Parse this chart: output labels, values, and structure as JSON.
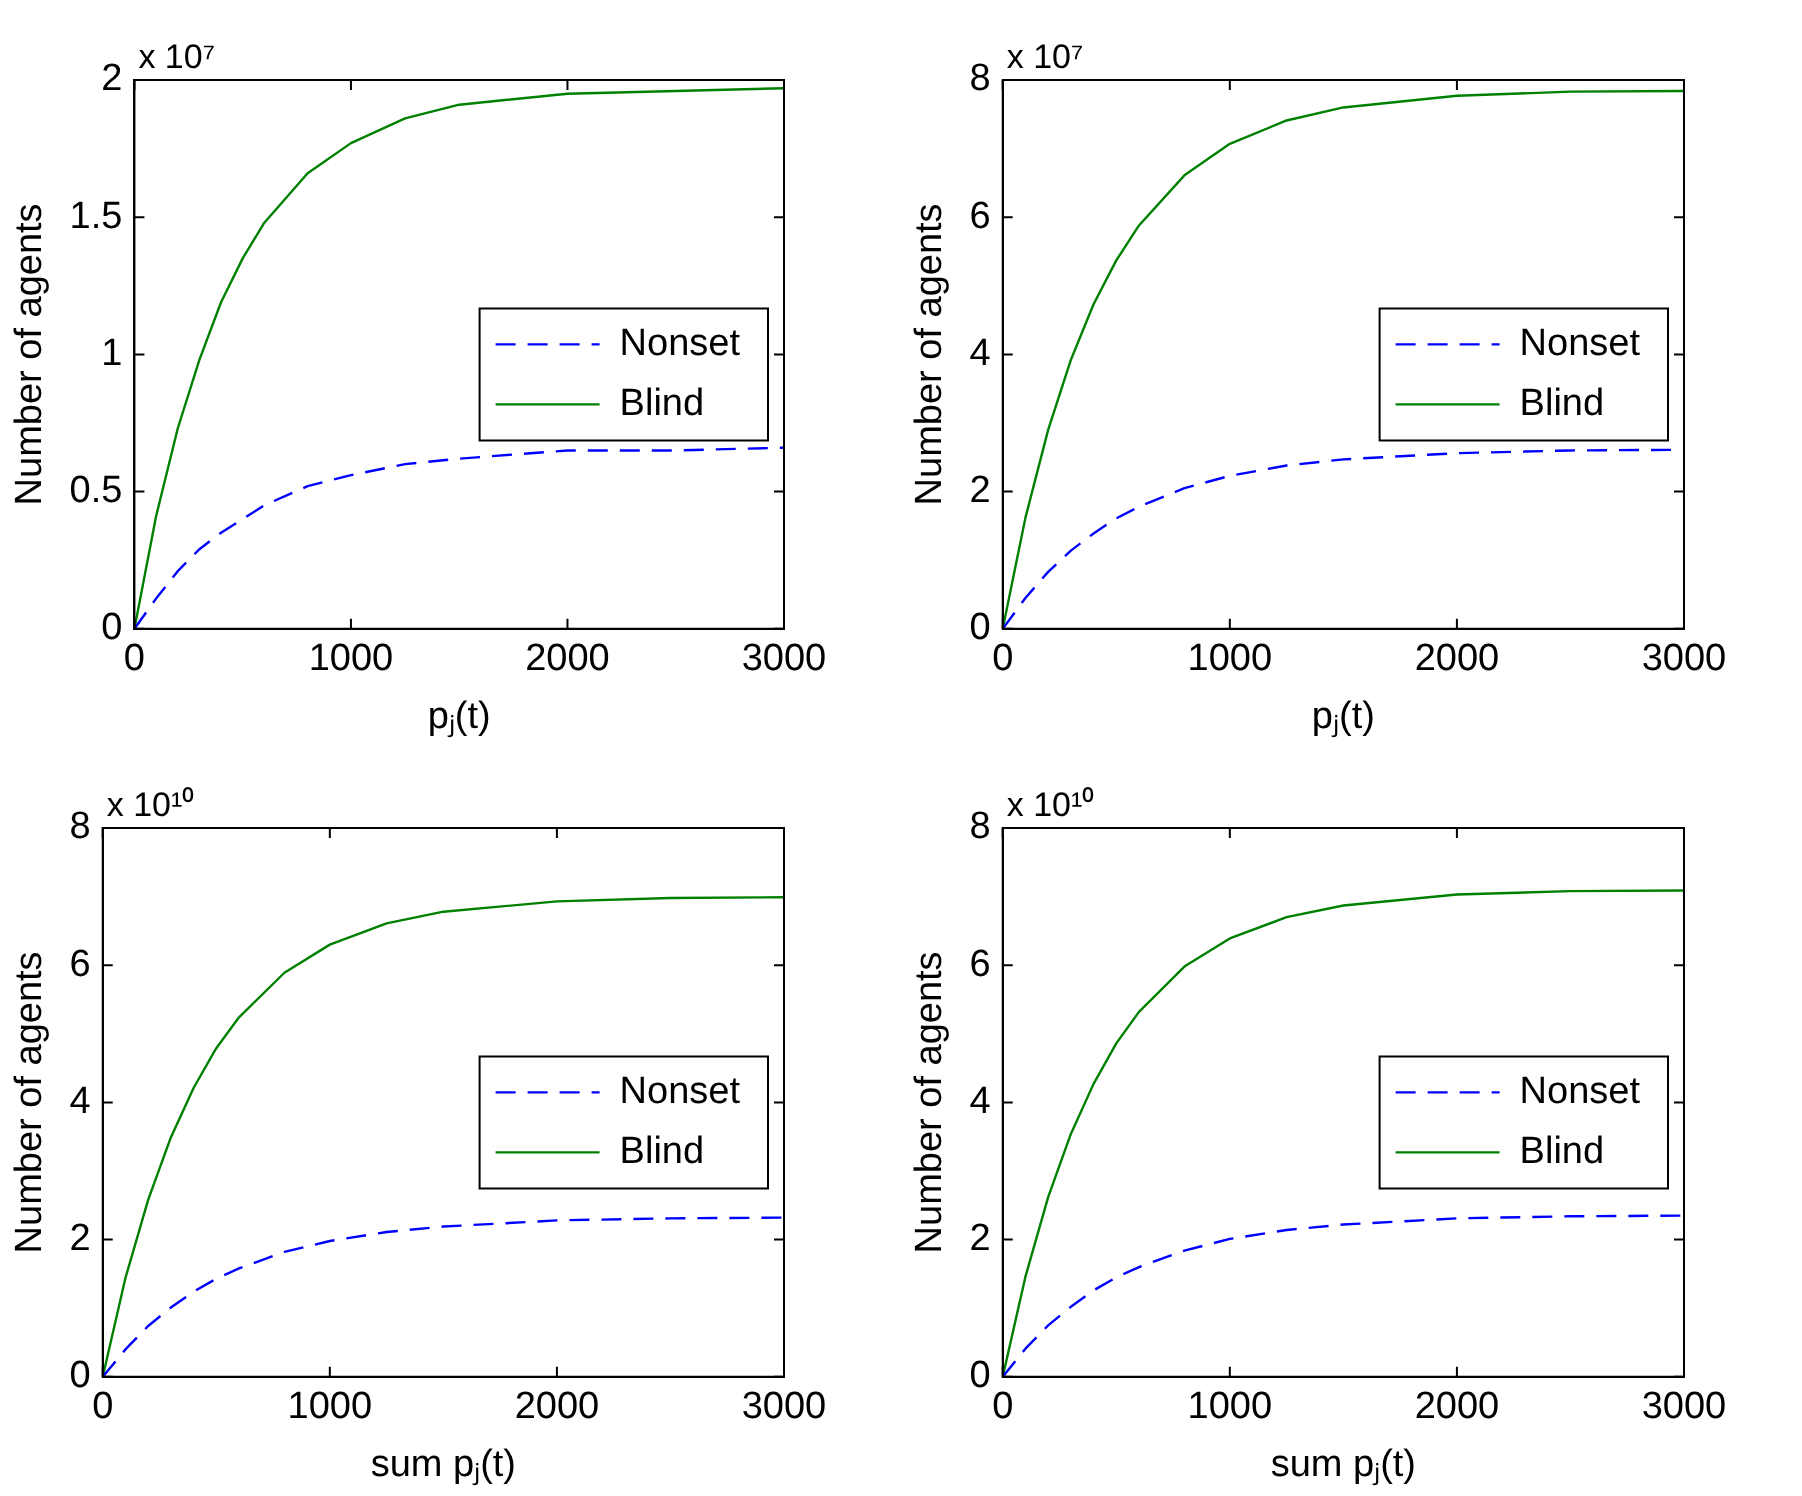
{
  "chart_data": [
    {
      "type": "line",
      "xlabel": "pⱼ(t)",
      "ylabel": "Number of agents",
      "annotations": [
        "x 10⁷"
      ],
      "xlim": [
        0,
        3000
      ],
      "xticks": [
        0,
        1000,
        2000,
        3000
      ],
      "ylim": [
        0,
        2
      ],
      "yticks": [
        0,
        0.5,
        1,
        1.5,
        2
      ],
      "grid": false,
      "legend": "right",
      "x": [
        0,
        100,
        200,
        300,
        400,
        500,
        600,
        800,
        1000,
        1250,
        1500,
        2000,
        2500,
        3000
      ],
      "series": [
        {
          "name": "Nonset",
          "color": "#0000ff",
          "line_style": "dashed",
          "values": [
            0,
            0.11,
            0.21,
            0.29,
            0.35,
            0.4,
            0.45,
            0.52,
            0.56,
            0.6,
            0.62,
            0.65,
            0.65,
            0.66
          ]
        },
        {
          "name": "Blind",
          "color": "#008000",
          "line_style": "solid",
          "values": [
            0,
            0.41,
            0.73,
            0.98,
            1.19,
            1.35,
            1.48,
            1.66,
            1.77,
            1.86,
            1.91,
            1.95,
            1.96,
            1.97
          ]
        }
      ]
    },
    {
      "type": "line",
      "xlabel": "pⱼ(t)",
      "ylabel": "Number of agents",
      "annotations": [
        "x 10⁷"
      ],
      "xlim": [
        0,
        3000
      ],
      "xticks": [
        0,
        1000,
        2000,
        3000
      ],
      "ylim": [
        0,
        8
      ],
      "yticks": [
        0,
        2,
        4,
        6,
        8
      ],
      "grid": false,
      "legend": "right",
      "x": [
        0,
        100,
        200,
        300,
        400,
        500,
        600,
        800,
        1000,
        1250,
        1500,
        2000,
        2500,
        3000
      ],
      "series": [
        {
          "name": "Nonset",
          "color": "#0000ff",
          "line_style": "dashed",
          "values": [
            0,
            0.45,
            0.83,
            1.14,
            1.39,
            1.61,
            1.78,
            2.05,
            2.23,
            2.38,
            2.47,
            2.56,
            2.6,
            2.61
          ]
        },
        {
          "name": "Blind",
          "color": "#008000",
          "line_style": "solid",
          "values": [
            0,
            1.62,
            2.9,
            3.92,
            4.73,
            5.37,
            5.88,
            6.61,
            7.07,
            7.41,
            7.6,
            7.77,
            7.83,
            7.84
          ]
        }
      ]
    },
    {
      "type": "line",
      "xlabel": "sum pⱼ(t)",
      "ylabel": "Number of agents",
      "annotations": [
        "x 10¹⁰"
      ],
      "xlim": [
        0,
        3000
      ],
      "xticks": [
        0,
        1000,
        2000,
        3000
      ],
      "ylim": [
        0,
        8
      ],
      "yticks": [
        0,
        2,
        4,
        6,
        8
      ],
      "grid": false,
      "legend": "right",
      "x": [
        0,
        100,
        200,
        300,
        400,
        500,
        600,
        800,
        1000,
        1250,
        1500,
        2000,
        2500,
        3000
      ],
      "series": [
        {
          "name": "Nonset",
          "color": "#0000ff",
          "line_style": "dashed",
          "values": [
            0,
            0.4,
            0.74,
            1.01,
            1.24,
            1.43,
            1.58,
            1.82,
            1.98,
            2.11,
            2.19,
            2.28,
            2.31,
            2.32
          ]
        },
        {
          "name": "Blind",
          "color": "#008000",
          "line_style": "solid",
          "values": [
            0,
            1.44,
            2.58,
            3.49,
            4.21,
            4.79,
            5.24,
            5.89,
            6.3,
            6.61,
            6.78,
            6.93,
            6.98,
            6.99
          ]
        }
      ]
    },
    {
      "type": "line",
      "xlabel": "sum pⱼ(t)",
      "ylabel": "Number of agents",
      "annotations": [
        "x 10¹⁰"
      ],
      "xlim": [
        0,
        3000
      ],
      "xticks": [
        0,
        1000,
        2000,
        3000
      ],
      "ylim": [
        0,
        8
      ],
      "yticks": [
        0,
        2,
        4,
        6,
        8
      ],
      "grid": false,
      "legend": "right",
      "x": [
        0,
        100,
        200,
        300,
        400,
        500,
        600,
        800,
        1000,
        1250,
        1500,
        2000,
        2500,
        3000
      ],
      "series": [
        {
          "name": "Nonset",
          "color": "#0000ff",
          "line_style": "dashed",
          "values": [
            0,
            0.41,
            0.75,
            1.02,
            1.26,
            1.45,
            1.6,
            1.84,
            2.01,
            2.14,
            2.22,
            2.31,
            2.34,
            2.35
          ]
        },
        {
          "name": "Blind",
          "color": "#008000",
          "line_style": "solid",
          "values": [
            0,
            1.46,
            2.62,
            3.54,
            4.27,
            4.86,
            5.32,
            5.98,
            6.39,
            6.7,
            6.87,
            7.03,
            7.08,
            7.09
          ]
        }
      ]
    }
  ]
}
